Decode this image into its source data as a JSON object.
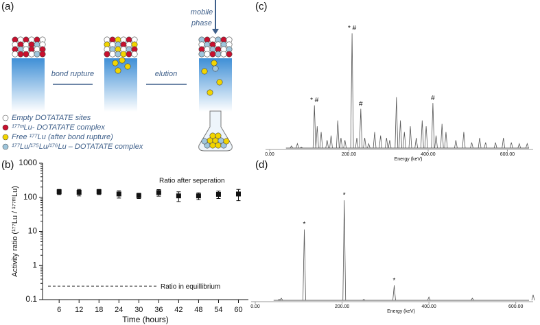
{
  "diagram": {
    "label": "(a)",
    "mobile_phase": [
      "mobile",
      "phase"
    ],
    "step1": "bond rupture",
    "step2": "elution",
    "legend": [
      "Empty DOTATATE sites",
      "¹⁷⁷ᵐLu- DOTATATE complex",
      "Free ¹⁷⁷Lu (after bond rupture)",
      "¹⁷⁷Lu/¹⁷⁵Lu/¹⁷⁶Lu – DOTATATE complex"
    ]
  },
  "chart_data": [
    {
      "type": "scatter",
      "label": "(b)",
      "x_label": "Time (hours)",
      "y_label": "Activity ratio (¹⁷⁷Lu / ¹⁷⁷ᵐLu)",
      "x": [
        6,
        12,
        18,
        24,
        30,
        36,
        42,
        48,
        54,
        60
      ],
      "values": [
        145,
        140,
        145,
        125,
        112,
        138,
        110,
        110,
        122,
        125
      ],
      "errors": [
        25,
        30,
        25,
        30,
        20,
        30,
        35,
        25,
        30,
        45
      ],
      "xlim": [
        1,
        63
      ],
      "xticks": [
        6,
        12,
        18,
        24,
        30,
        36,
        42,
        48,
        54,
        60
      ],
      "ylim": [
        0.1,
        1000
      ],
      "log_scale": true,
      "yticks": [
        0.1,
        1,
        10,
        100,
        1000
      ],
      "reference_line": {
        "value": 0.25,
        "label": "Ratio in equillibrium"
      },
      "annotation": "Ratio after seperation",
      "color": "#111111"
    },
    {
      "type": "spectrum",
      "label": "(c)",
      "x_label": "Energy (keV)",
      "x": [
        55,
        70,
        80,
        113,
        120,
        130,
        145,
        155,
        172,
        180,
        190,
        208,
        220,
        230,
        240,
        250,
        265,
        280,
        295,
        303,
        320,
        330,
        340,
        355,
        370,
        385,
        395,
        412,
        420,
        435,
        445,
        470,
        490,
        510,
        530,
        545,
        570,
        590,
        610,
        630,
        650
      ],
      "values": [
        0.03,
        0.05,
        0.02,
        0.38,
        0.2,
        0.15,
        0.08,
        0.12,
        0.25,
        0.1,
        0.08,
        1.0,
        0.1,
        0.35,
        0.1,
        0.05,
        0.15,
        0.12,
        0.1,
        0.08,
        0.45,
        0.25,
        0.15,
        0.2,
        0.1,
        0.25,
        0.2,
        0.4,
        0.12,
        0.22,
        0.15,
        0.08,
        0.15,
        0.06,
        0.1,
        0.06,
        0.06,
        0.1,
        0.06,
        0.05,
        0.05
      ],
      "xlim": [
        0,
        665
      ],
      "ylim": [
        0,
        1.05
      ],
      "xticks": [
        {
          "value": 0,
          "label": "0.00"
        },
        {
          "value": 200,
          "label": "200.00"
        },
        {
          "value": 400,
          "label": "400.00"
        },
        {
          "value": 600,
          "label": "600.00"
        }
      ],
      "annotations": [
        {
          "x": 113,
          "text": "*  #"
        },
        {
          "x": 208,
          "text": "* #"
        },
        {
          "x": 230,
          "text": "#"
        },
        {
          "x": 412,
          "text": "#"
        }
      ],
      "color": "#555555"
    },
    {
      "type": "spectrum",
      "label": "(d)",
      "x_label": "Energy (keV)",
      "x": [
        55,
        60,
        113,
        205,
        250,
        320,
        400,
        500,
        640
      ],
      "values": [
        0.02,
        0.03,
        0.62,
        0.87,
        0.02,
        0.14,
        0.04,
        0.03,
        0.06
      ],
      "xlim": [
        0,
        640
      ],
      "ylim": [
        0,
        1
      ],
      "xticks": [
        {
          "value": 0,
          "label": "0.00"
        },
        {
          "value": 200,
          "label": "200.00"
        },
        {
          "value": 400,
          "label": "400.00"
        },
        {
          "value": 600,
          "label": "600.00"
        }
      ],
      "annotations": [
        {
          "x": 113,
          "text": "*"
        },
        {
          "x": 205,
          "text": "*"
        },
        {
          "x": 320,
          "text": "*"
        }
      ],
      "color": "#555555"
    }
  ]
}
